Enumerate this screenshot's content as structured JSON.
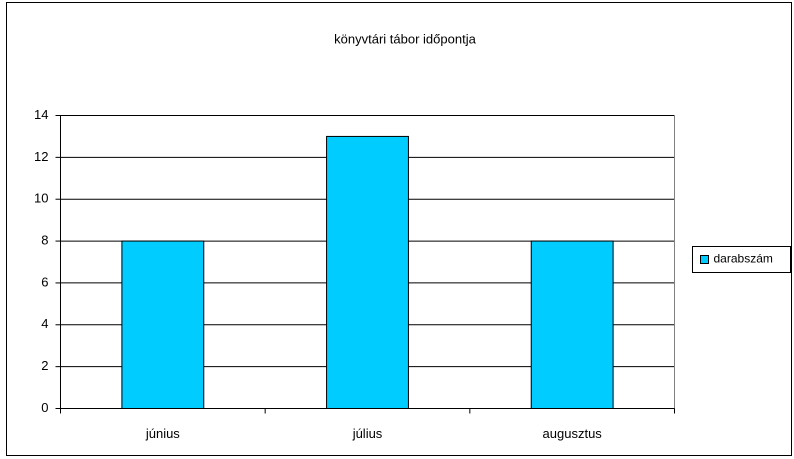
{
  "chart_data": {
    "type": "bar",
    "title": "könyvtári tábor időpontja",
    "categories": [
      "június",
      "július",
      "augusztus"
    ],
    "series": [
      {
        "name": "darabszám",
        "color": "#00ccff",
        "values": [
          8,
          13,
          8
        ]
      }
    ],
    "ylim": [
      0,
      14
    ],
    "yticks": [
      0,
      2,
      4,
      6,
      8,
      10,
      12,
      14
    ],
    "grid": true,
    "legend": "right"
  }
}
